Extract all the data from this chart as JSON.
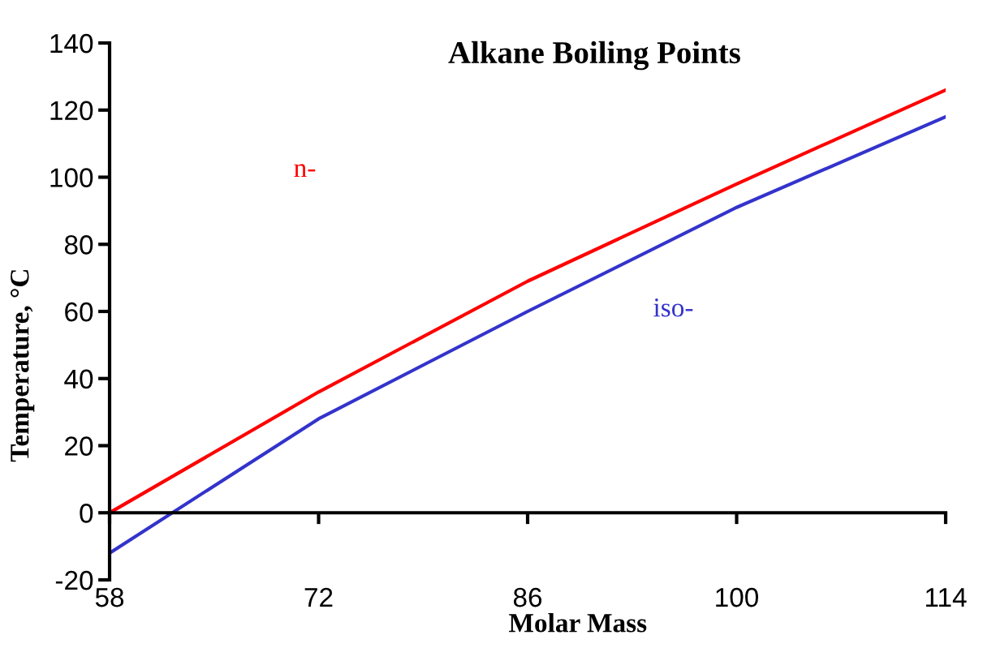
{
  "chart_data": {
    "type": "line",
    "title": "Alkane Boiling Points",
    "xlabel": "Molar Mass",
    "ylabel": "Temperature, °C",
    "x": [
      58,
      72,
      86,
      100,
      114
    ],
    "series": [
      {
        "name": "n-",
        "color": "#ff0000",
        "values": [
          0,
          36,
          69,
          98,
          126
        ]
      },
      {
        "name": "iso-",
        "color": "#3333cc",
        "values": [
          -12,
          28,
          60,
          91,
          118
        ]
      }
    ],
    "xlim": [
      58,
      114
    ],
    "xticks": [
      58,
      72,
      86,
      100,
      114
    ],
    "ylim": [
      -20,
      140
    ],
    "yticks": [
      -20,
      0,
      20,
      40,
      60,
      80,
      100,
      120,
      140
    ],
    "legend": false,
    "marker": "none",
    "line_style": "solid"
  }
}
